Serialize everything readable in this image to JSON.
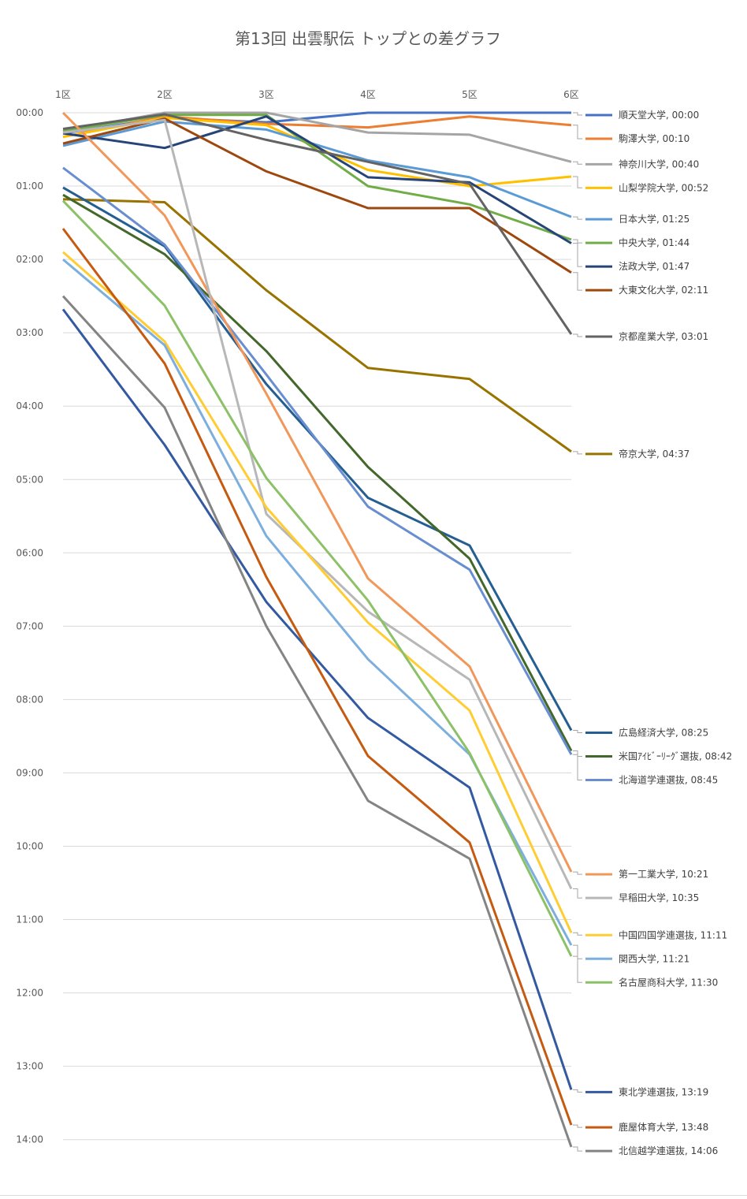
{
  "chart_data": {
    "type": "line",
    "title": "第13回 出雲駅伝 トップとの差グラフ",
    "x": [
      "1区",
      "2区",
      "3区",
      "4区",
      "5区",
      "6区"
    ],
    "y_ticks": [
      "00:00",
      "01:00",
      "02:00",
      "03:00",
      "04:00",
      "05:00",
      "06:00",
      "07:00",
      "08:00",
      "09:00",
      "10:00",
      "11:00",
      "12:00",
      "13:00",
      "14:00"
    ],
    "y_unit": "minutes",
    "ylim": [
      0,
      14.1
    ],
    "y_inverted": true,
    "grid": true,
    "legend": "right",
    "series": [
      {
        "name": "順天堂大学",
        "label": "順天堂大学, 00:00",
        "color": "#4472c4",
        "values": [
          0.28,
          0.07,
          0.13,
          0.0,
          0.0,
          0.0
        ]
      },
      {
        "name": "駒澤大学",
        "label": "駒澤大学, 00:10",
        "color": "#ed7d31",
        "values": [
          0.33,
          0.05,
          0.15,
          0.2,
          0.05,
          0.17
        ]
      },
      {
        "name": "神奈川大学",
        "label": "神奈川大学, 00:40",
        "color": "#a5a5a5",
        "values": [
          0.25,
          0.0,
          0.0,
          0.27,
          0.3,
          0.67
        ]
      },
      {
        "name": "山梨学院大学",
        "label": "山梨学院大学, 00:52",
        "color": "#ffc000",
        "values": [
          0.33,
          0.07,
          0.17,
          0.78,
          1.0,
          0.87
        ]
      },
      {
        "name": "日本大学",
        "label": "日本大学, 01:25",
        "color": "#5b9bd5",
        "values": [
          0.45,
          0.12,
          0.23,
          0.65,
          0.88,
          1.42
        ]
      },
      {
        "name": "中央大学",
        "label": "中央大学, 01:44",
        "color": "#70ad47",
        "values": [
          0.25,
          0.03,
          0.03,
          1.0,
          1.25,
          1.73
        ]
      },
      {
        "name": "法政大学",
        "label": "法政大学, 01:47",
        "color": "#264478",
        "values": [
          0.28,
          0.48,
          0.05,
          0.88,
          0.95,
          1.78
        ]
      },
      {
        "name": "大東文化大学",
        "label": "大東文化大学, 02:11",
        "color": "#9e480e",
        "values": [
          0.42,
          0.08,
          0.8,
          1.3,
          1.3,
          2.18
        ]
      },
      {
        "name": "京都産業大学",
        "label": "京都産業大学, 03:01",
        "color": "#636363",
        "values": [
          0.22,
          0.02,
          0.37,
          0.67,
          0.97,
          3.02
        ]
      },
      {
        "name": "帝京大学",
        "label": "帝京大学, 04:37",
        "color": "#997300",
        "values": [
          1.18,
          1.22,
          2.42,
          3.48,
          3.63,
          4.62
        ]
      },
      {
        "name": "広島経済大学",
        "label": "広島経済大学, 08:25",
        "color": "#255e91",
        "values": [
          1.02,
          1.82,
          3.7,
          5.25,
          5.9,
          8.42
        ]
      },
      {
        "name": "米国ｱｲﾋﾞｰﾘｰｸﾞ選抜",
        "label": "米国ｱｲﾋﾞｰﾘｰｸﾞ選抜, 08:42",
        "color": "#43682b",
        "values": [
          1.12,
          1.93,
          3.25,
          4.83,
          6.08,
          8.7
        ]
      },
      {
        "name": "北海道学連選抜",
        "label": "北海道学連選抜, 08:45",
        "color": "#698ed0",
        "values": [
          0.75,
          1.8,
          3.57,
          5.37,
          6.23,
          8.75
        ]
      },
      {
        "name": "第一工業大学",
        "label": "第一工業大学, 10:21",
        "color": "#f1975a",
        "values": [
          0.0,
          1.4,
          3.83,
          6.35,
          7.55,
          10.35
        ]
      },
      {
        "name": "早稲田大学",
        "label": "早稲田大学, 10:35",
        "color": "#b7b7b7",
        "values": [
          0.27,
          0.1,
          5.47,
          6.8,
          7.73,
          10.58
        ]
      },
      {
        "name": "中国四国学連選抜",
        "label": "中国四国学連選抜, 11:11",
        "color": "#ffcd33",
        "values": [
          1.9,
          3.12,
          5.38,
          6.95,
          8.15,
          11.18
        ]
      },
      {
        "name": "関西大学",
        "label": "関西大学, 11:21",
        "color": "#7cafdd",
        "values": [
          2.0,
          3.17,
          5.77,
          7.45,
          8.75,
          11.35
        ]
      },
      {
        "name": "名古屋商科大学",
        "label": "名古屋商科大学, 11:30",
        "color": "#8cc168",
        "values": [
          1.2,
          2.63,
          4.98,
          6.65,
          8.73,
          11.5
        ]
      },
      {
        "name": "東北学連選抜",
        "label": "東北学連選抜, 13:19",
        "color": "#335aa1",
        "values": [
          2.68,
          4.53,
          6.67,
          8.25,
          9.2,
          13.32
        ]
      },
      {
        "name": "鹿屋体育大学",
        "label": "鹿屋体育大学, 13:48",
        "color": "#c55a11",
        "values": [
          1.58,
          3.42,
          6.33,
          8.77,
          9.95,
          13.8
        ]
      },
      {
        "name": "北信越学連選抜",
        "label": "北信越学連選抜, 14:06",
        "color": "#848484",
        "values": [
          2.5,
          4.02,
          7.0,
          9.38,
          10.17,
          14.1
        ]
      }
    ]
  }
}
